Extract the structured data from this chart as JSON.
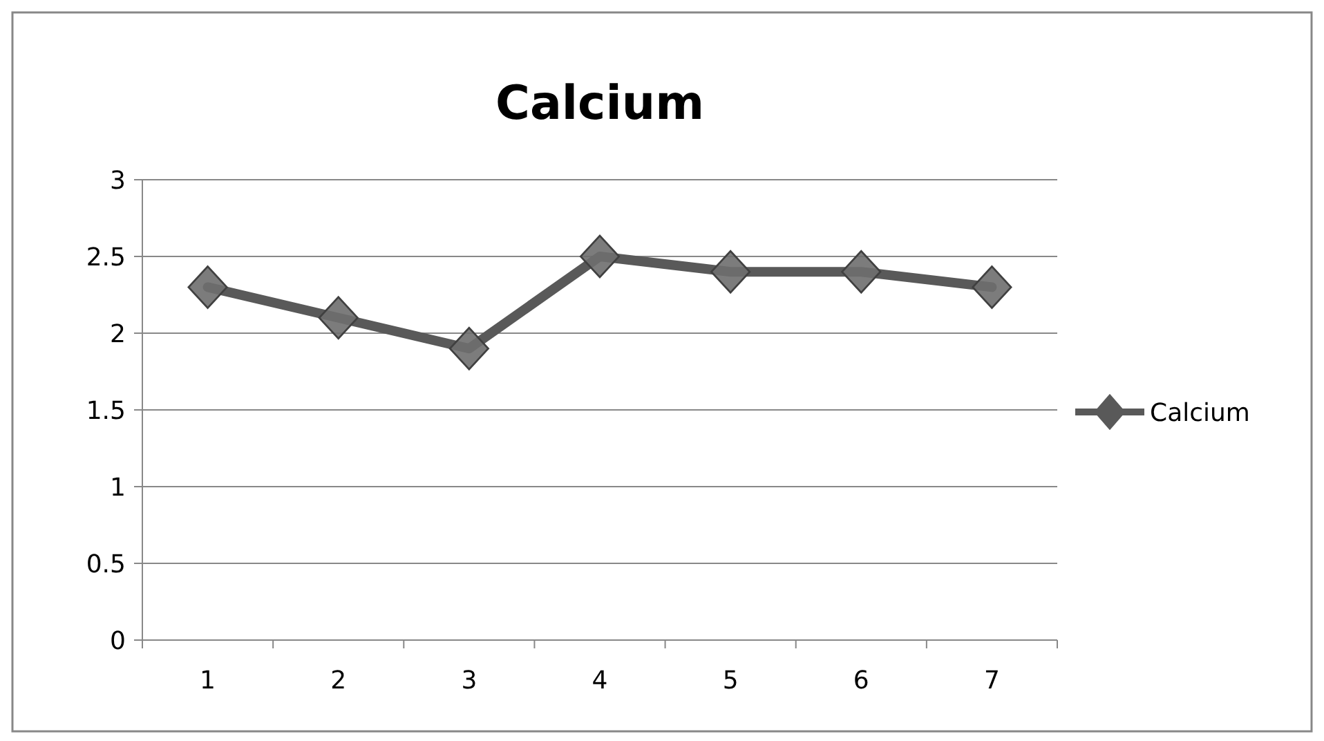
{
  "chart_data": {
    "type": "line",
    "title": "Calcium",
    "categories": [
      "1",
      "2",
      "3",
      "4",
      "5",
      "6",
      "7"
    ],
    "series": [
      {
        "name": "Calcium",
        "color": "#595959",
        "values": [
          2.3,
          2.1,
          1.9,
          2.5,
          2.4,
          2.4,
          2.3
        ]
      }
    ],
    "ylim": [
      0,
      3
    ],
    "yticks": [
      0,
      0.5,
      1,
      1.5,
      2,
      2.5,
      3
    ],
    "grid": "y",
    "legend": "right",
    "marker": "diamond"
  }
}
